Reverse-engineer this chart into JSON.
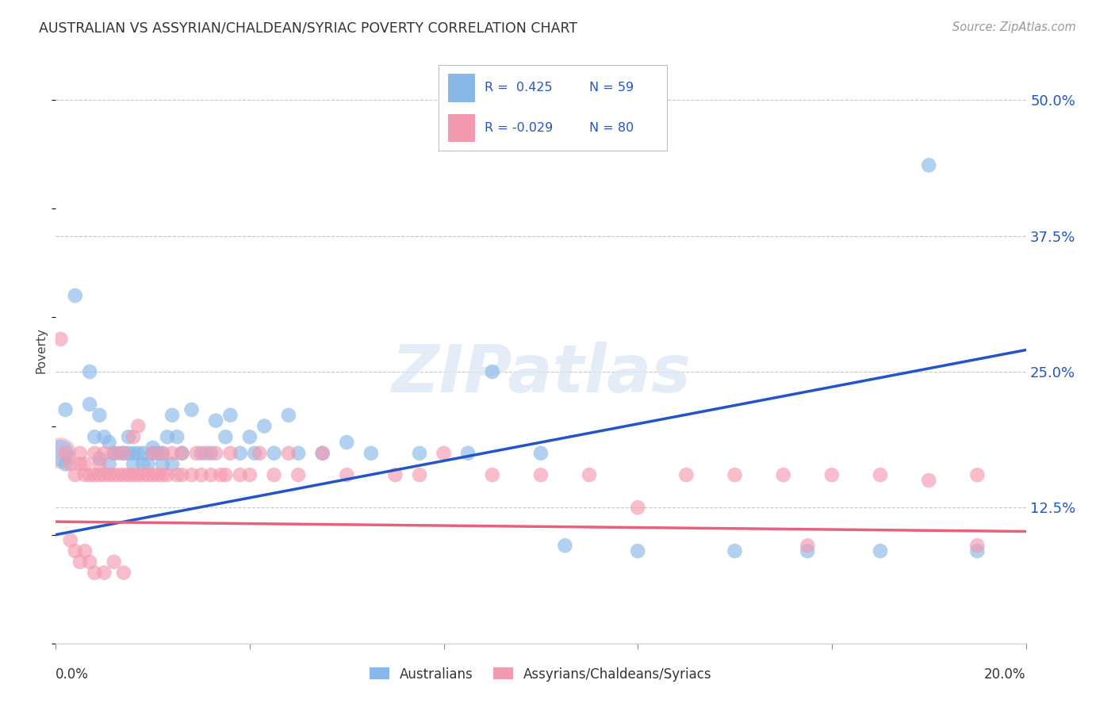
{
  "title": "AUSTRALIAN VS ASSYRIAN/CHALDEAN/SYRIAC POVERTY CORRELATION CHART",
  "source": "Source: ZipAtlas.com",
  "ylabel": "Poverty",
  "yticks": [
    0.0,
    0.125,
    0.25,
    0.375,
    0.5
  ],
  "ytick_labels": [
    "",
    "12.5%",
    "25.0%",
    "37.5%",
    "50.0%"
  ],
  "xmin": 0.0,
  "xmax": 0.2,
  "ymin": 0.0,
  "ymax": 0.54,
  "watermark_text": "ZIPatlas",
  "legend_label_australians": "Australians",
  "legend_label_assyrians": "Assyrians/Chaldeans/Syriacs",
  "blue_color": "#89b8e8",
  "pink_color": "#f49ab0",
  "blue_line_color": "#2255cc",
  "pink_line_color": "#e8607a",
  "background_color": "#ffffff",
  "grid_color": "#c8c8c8",
  "blue_trend_x": [
    0.0,
    0.2
  ],
  "blue_trend_y": [
    0.1,
    0.27
  ],
  "pink_trend_x": [
    0.0,
    0.2
  ],
  "pink_trend_y": [
    0.112,
    0.103
  ],
  "blue_points": [
    [
      0.002,
      0.215
    ],
    [
      0.004,
      0.32
    ],
    [
      0.007,
      0.25
    ],
    [
      0.007,
      0.22
    ],
    [
      0.008,
      0.19
    ],
    [
      0.009,
      0.17
    ],
    [
      0.009,
      0.21
    ],
    [
      0.01,
      0.19
    ],
    [
      0.011,
      0.165
    ],
    [
      0.011,
      0.185
    ],
    [
      0.012,
      0.175
    ],
    [
      0.013,
      0.175
    ],
    [
      0.014,
      0.175
    ],
    [
      0.015,
      0.175
    ],
    [
      0.015,
      0.19
    ],
    [
      0.016,
      0.165
    ],
    [
      0.016,
      0.175
    ],
    [
      0.017,
      0.175
    ],
    [
      0.018,
      0.165
    ],
    [
      0.018,
      0.175
    ],
    [
      0.019,
      0.165
    ],
    [
      0.02,
      0.175
    ],
    [
      0.02,
      0.18
    ],
    [
      0.021,
      0.175
    ],
    [
      0.022,
      0.165
    ],
    [
      0.022,
      0.175
    ],
    [
      0.023,
      0.19
    ],
    [
      0.024,
      0.165
    ],
    [
      0.024,
      0.21
    ],
    [
      0.025,
      0.19
    ],
    [
      0.026,
      0.175
    ],
    [
      0.028,
      0.215
    ],
    [
      0.03,
      0.175
    ],
    [
      0.032,
      0.175
    ],
    [
      0.033,
      0.205
    ],
    [
      0.035,
      0.19
    ],
    [
      0.036,
      0.21
    ],
    [
      0.038,
      0.175
    ],
    [
      0.04,
      0.19
    ],
    [
      0.041,
      0.175
    ],
    [
      0.043,
      0.2
    ],
    [
      0.045,
      0.175
    ],
    [
      0.048,
      0.21
    ],
    [
      0.05,
      0.175
    ],
    [
      0.055,
      0.175
    ],
    [
      0.06,
      0.185
    ],
    [
      0.065,
      0.175
    ],
    [
      0.075,
      0.175
    ],
    [
      0.085,
      0.175
    ],
    [
      0.09,
      0.25
    ],
    [
      0.1,
      0.175
    ],
    [
      0.105,
      0.09
    ],
    [
      0.12,
      0.085
    ],
    [
      0.14,
      0.085
    ],
    [
      0.155,
      0.085
    ],
    [
      0.17,
      0.085
    ],
    [
      0.18,
      0.44
    ],
    [
      0.19,
      0.085
    ],
    [
      0.002,
      0.165
    ]
  ],
  "pink_points": [
    [
      0.001,
      0.28
    ],
    [
      0.002,
      0.175
    ],
    [
      0.003,
      0.165
    ],
    [
      0.004,
      0.155
    ],
    [
      0.005,
      0.165
    ],
    [
      0.005,
      0.175
    ],
    [
      0.006,
      0.155
    ],
    [
      0.006,
      0.165
    ],
    [
      0.007,
      0.155
    ],
    [
      0.008,
      0.155
    ],
    [
      0.008,
      0.175
    ],
    [
      0.009,
      0.155
    ],
    [
      0.009,
      0.165
    ],
    [
      0.01,
      0.155
    ],
    [
      0.01,
      0.175
    ],
    [
      0.011,
      0.155
    ],
    [
      0.012,
      0.155
    ],
    [
      0.012,
      0.175
    ],
    [
      0.013,
      0.155
    ],
    [
      0.014,
      0.155
    ],
    [
      0.014,
      0.175
    ],
    [
      0.015,
      0.155
    ],
    [
      0.016,
      0.155
    ],
    [
      0.016,
      0.19
    ],
    [
      0.017,
      0.155
    ],
    [
      0.017,
      0.2
    ],
    [
      0.018,
      0.155
    ],
    [
      0.019,
      0.155
    ],
    [
      0.02,
      0.155
    ],
    [
      0.02,
      0.175
    ],
    [
      0.021,
      0.155
    ],
    [
      0.022,
      0.155
    ],
    [
      0.022,
      0.175
    ],
    [
      0.023,
      0.155
    ],
    [
      0.024,
      0.175
    ],
    [
      0.025,
      0.155
    ],
    [
      0.026,
      0.155
    ],
    [
      0.026,
      0.175
    ],
    [
      0.028,
      0.155
    ],
    [
      0.029,
      0.175
    ],
    [
      0.03,
      0.155
    ],
    [
      0.031,
      0.175
    ],
    [
      0.032,
      0.155
    ],
    [
      0.033,
      0.175
    ],
    [
      0.034,
      0.155
    ],
    [
      0.035,
      0.155
    ],
    [
      0.036,
      0.175
    ],
    [
      0.038,
      0.155
    ],
    [
      0.04,
      0.155
    ],
    [
      0.042,
      0.175
    ],
    [
      0.045,
      0.155
    ],
    [
      0.048,
      0.175
    ],
    [
      0.05,
      0.155
    ],
    [
      0.055,
      0.175
    ],
    [
      0.06,
      0.155
    ],
    [
      0.07,
      0.155
    ],
    [
      0.075,
      0.155
    ],
    [
      0.08,
      0.175
    ],
    [
      0.09,
      0.155
    ],
    [
      0.1,
      0.155
    ],
    [
      0.11,
      0.155
    ],
    [
      0.12,
      0.125
    ],
    [
      0.13,
      0.155
    ],
    [
      0.14,
      0.155
    ],
    [
      0.15,
      0.155
    ],
    [
      0.155,
      0.09
    ],
    [
      0.16,
      0.155
    ],
    [
      0.17,
      0.155
    ],
    [
      0.18,
      0.15
    ],
    [
      0.19,
      0.155
    ],
    [
      0.19,
      0.09
    ],
    [
      0.003,
      0.095
    ],
    [
      0.004,
      0.085
    ],
    [
      0.005,
      0.075
    ],
    [
      0.006,
      0.085
    ],
    [
      0.007,
      0.075
    ],
    [
      0.008,
      0.065
    ],
    [
      0.01,
      0.065
    ],
    [
      0.012,
      0.075
    ],
    [
      0.014,
      0.065
    ]
  ],
  "blue_large_point": [
    0.001,
    0.175
  ],
  "pink_large_point": [
    0.001,
    0.175
  ],
  "legend_R_blue": "R =  0.425",
  "legend_N_blue": "N = 59",
  "legend_R_pink": "R = -0.029",
  "legend_N_pink": "N = 80",
  "legend_text_color": "#2255cc"
}
